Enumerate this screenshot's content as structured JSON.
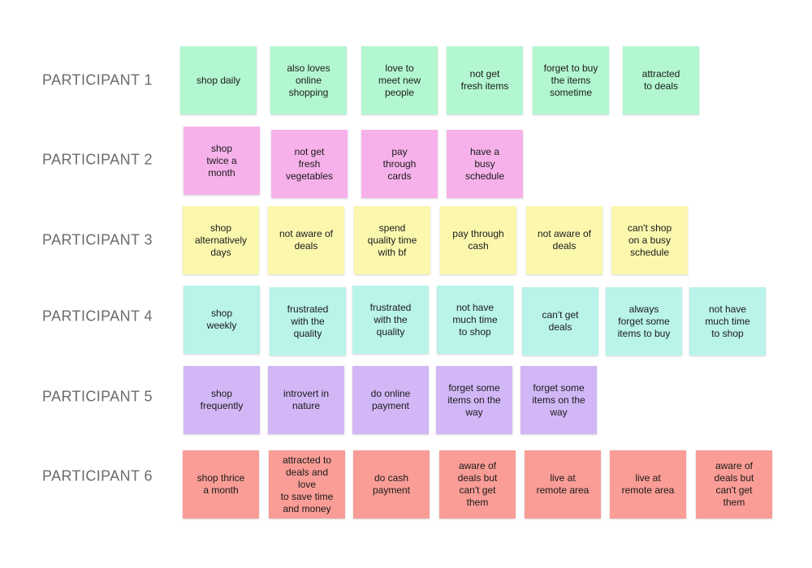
{
  "participants": [
    {
      "label": "PARTICIPANT 1",
      "color": "#b3f7d0",
      "notes": [
        "shop daily",
        "also loves\nonline\nshopping",
        "love to\nmeet new\npeople",
        "not get\nfresh items",
        "forget to buy\nthe items\nsometime",
        "attracted\nto deals"
      ]
    },
    {
      "label": "PARTICIPANT 2",
      "color": "#f7b1ea",
      "notes": [
        "shop\ntwice a\nmonth",
        "not get\nfresh\nvegetables",
        "pay\nthrough\ncards",
        "have a\nbusy\nschedule"
      ]
    },
    {
      "label": "PARTICIPANT 3",
      "color": "#fbf8ae",
      "notes": [
        "shop\nalternatively\ndays",
        "not aware of\ndeals",
        "spend\nquality time\nwith bf",
        "pay through\ncash",
        "not aware of\ndeals",
        "can't shop\non a busy\nschedule"
      ]
    },
    {
      "label": "PARTICIPANT 4",
      "color": "#b9f3ea",
      "notes": [
        "shop\nweekly",
        "frustrated\nwith the\nquality",
        "frustrated\nwith the\nquality",
        "not have\nmuch time\nto shop",
        "can't get\ndeals",
        "always\nforget some\nitems to buy",
        "not have\nmuch time\nto shop"
      ]
    },
    {
      "label": "PARTICIPANT 5",
      "color": "#d2b7f7",
      "notes": [
        "shop\nfrequently",
        "introvert in\nnature",
        "do online\npayment",
        "forget some\nitems on the\nway",
        "forget some\nitems on the\nway"
      ]
    },
    {
      "label": "PARTICIPANT 6",
      "color": "#f99d96",
      "notes": [
        "shop thrice\na month",
        "attracted to\ndeals and love\nto save time\nand money",
        "do cash\npayment",
        "aware of\ndeals but\ncan't get\nthem",
        "live at\nremote area",
        "live at\nremote area",
        "aware of\ndeals but\ncan't get\nthem"
      ]
    }
  ]
}
